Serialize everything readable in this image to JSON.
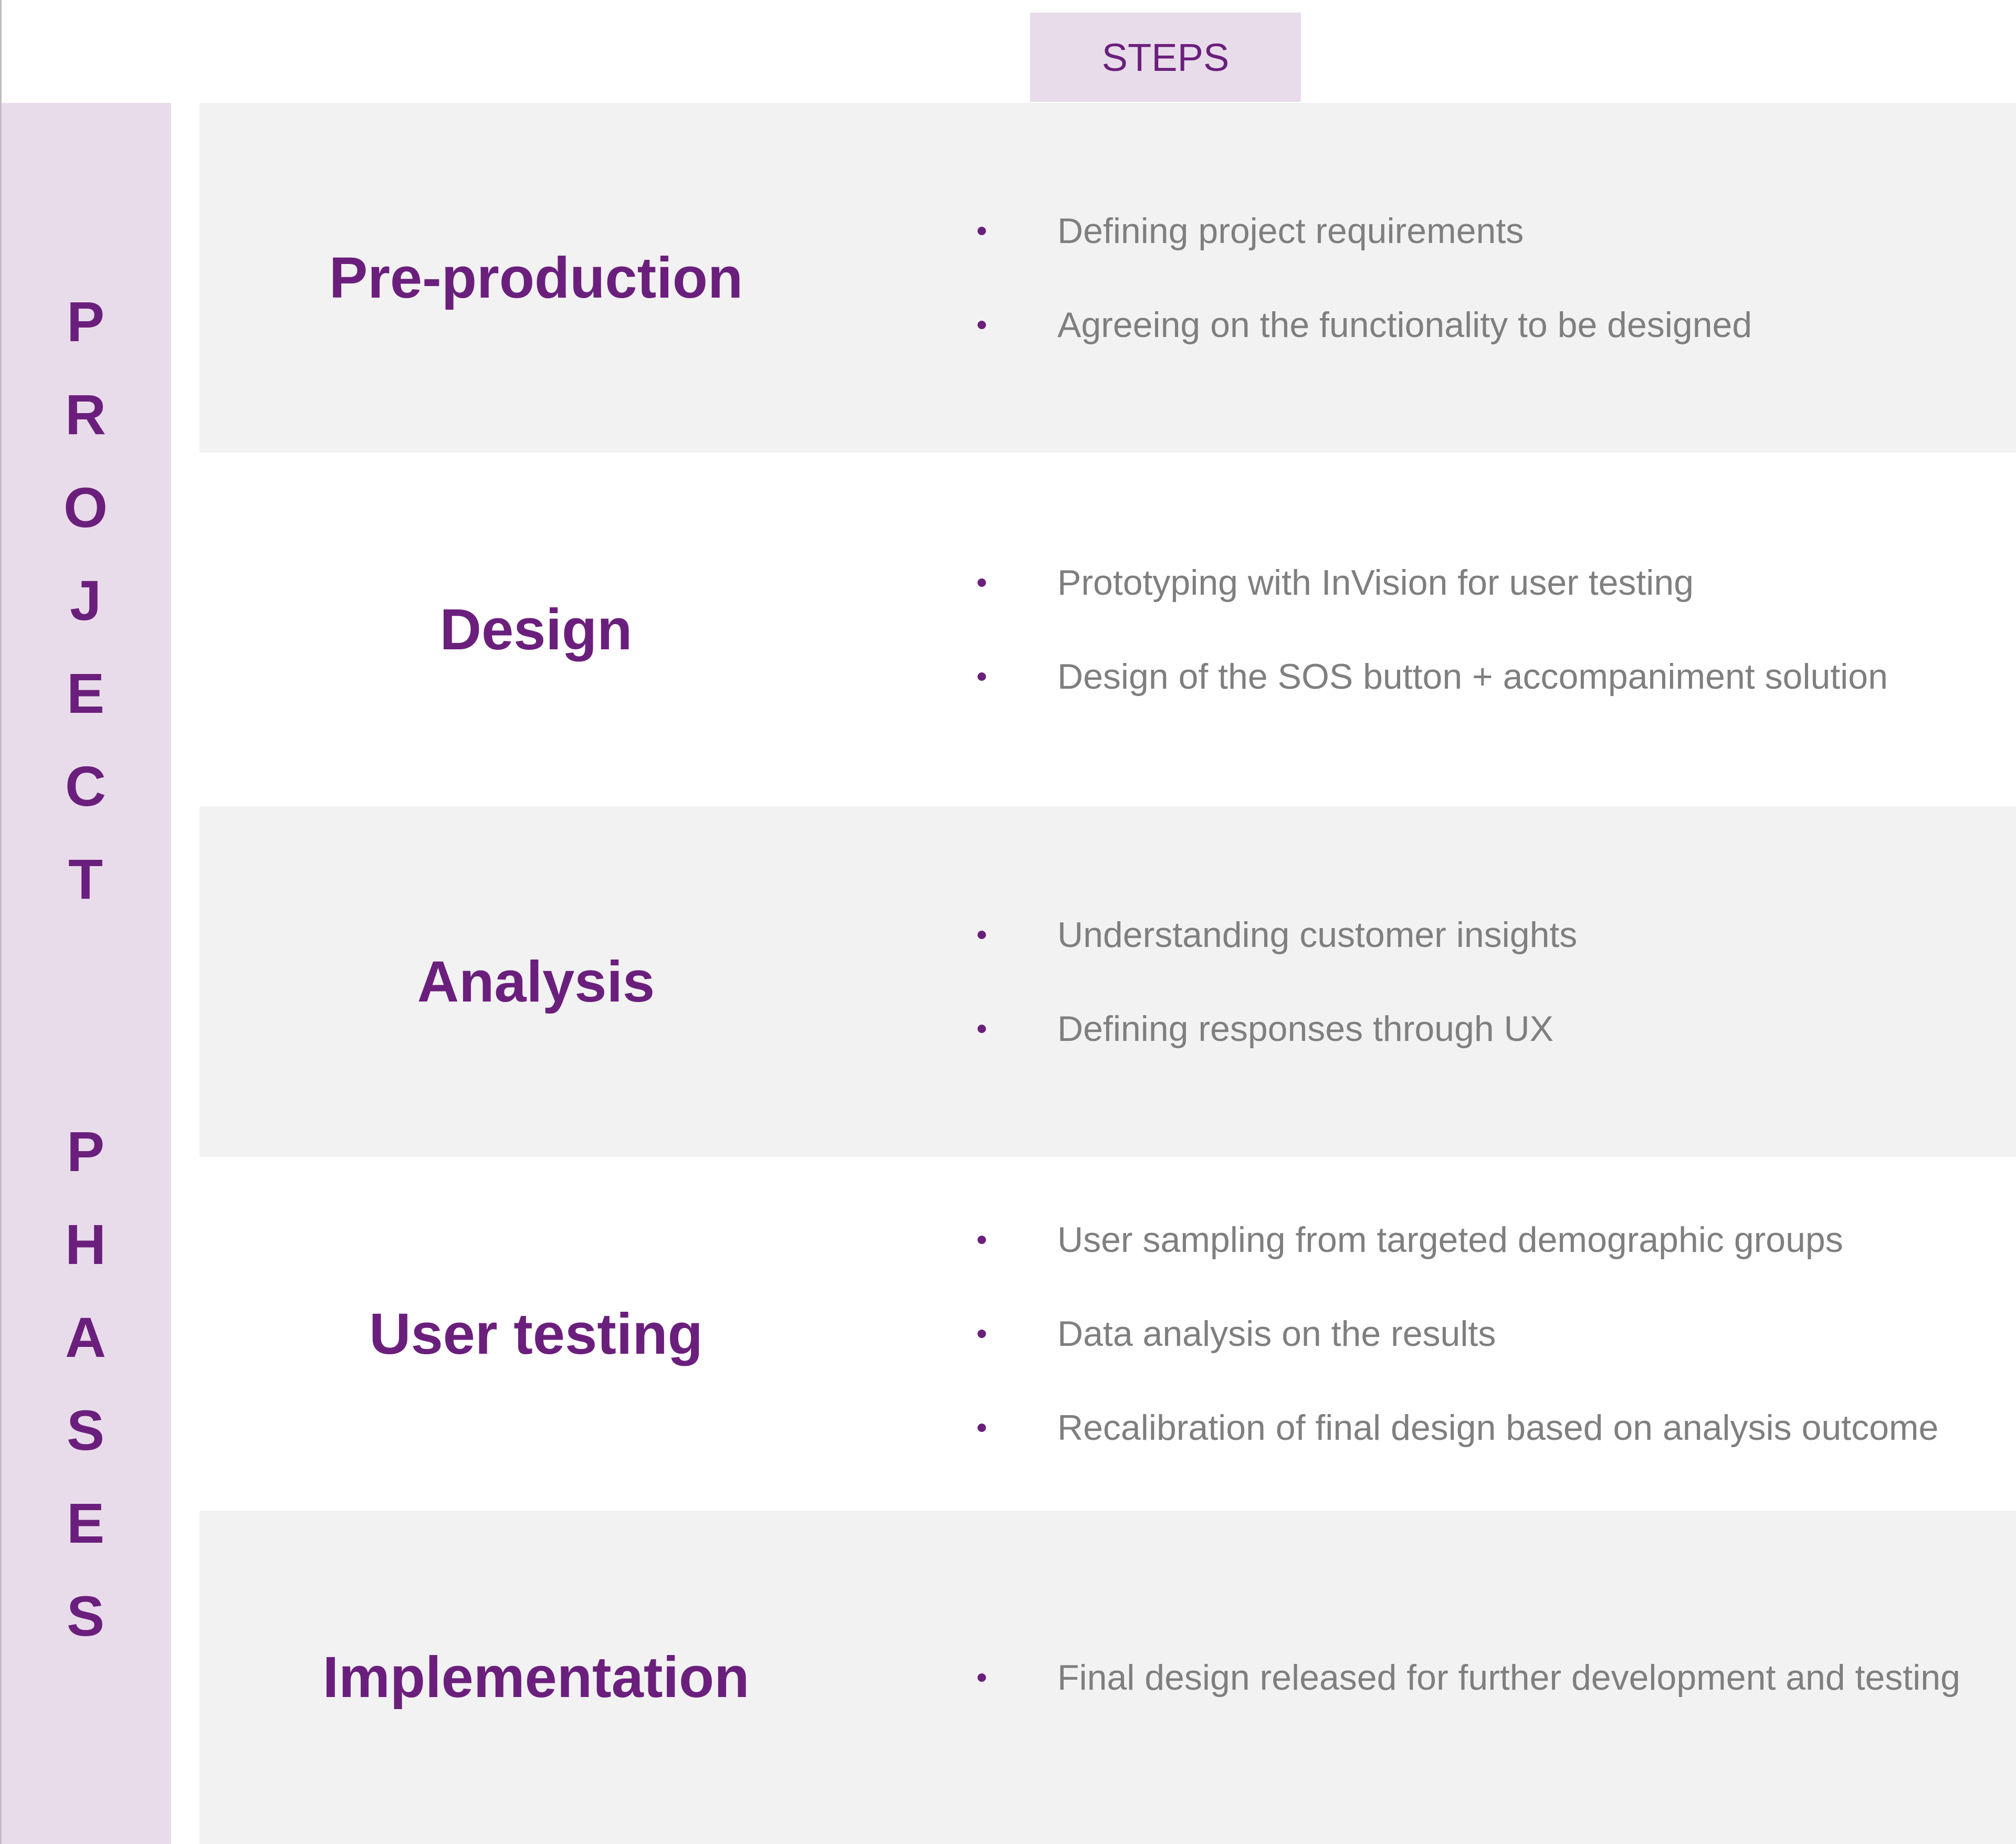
{
  "header": {
    "steps_label": "STEPS"
  },
  "sidebar": {
    "word1": [
      "P",
      "R",
      "O",
      "J",
      "E",
      "C",
      "T"
    ],
    "word2": [
      "P",
      "H",
      "A",
      "S",
      "E",
      "S"
    ]
  },
  "colors": {
    "accent": "#6b1f7c",
    "band": "#e8dcea",
    "row_alt": "#f2f2f2",
    "text": "#7f7f7f"
  },
  "phases": [
    {
      "title": "Pre-production",
      "steps": [
        "Defining project requirements",
        "Agreeing on the functionality to be designed"
      ]
    },
    {
      "title": "Design",
      "steps": [
        "Prototyping with InVision for user testing",
        "Design of the SOS button + accompaniment solution"
      ]
    },
    {
      "title": "Analysis",
      "steps": [
        "Understanding customer insights",
        "Defining responses through UX"
      ]
    },
    {
      "title": "User testing",
      "steps": [
        "User sampling from targeted demographic groups",
        "Data analysis on the results",
        "Recalibration of final design based on analysis outcome"
      ]
    },
    {
      "title": "Implementation",
      "steps": [
        "Final design released  for further development and testing"
      ]
    }
  ]
}
